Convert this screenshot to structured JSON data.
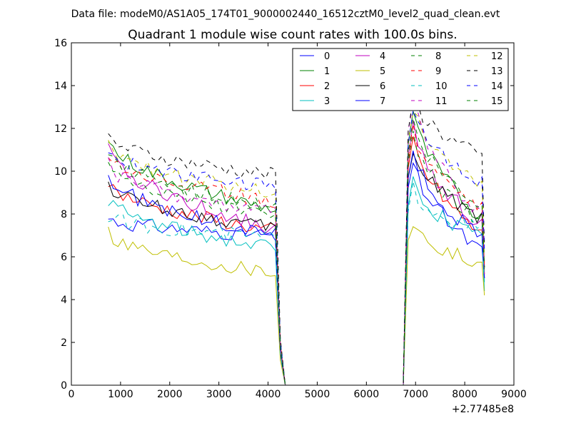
{
  "suptitle": "Data file: modeM0/AS1A05_174T01_9000002440_16512cztM0_level2_quad_clean.evt",
  "chart_data": {
    "type": "line",
    "title": "Quadrant 1 module wise count rates with 100.0s bins.",
    "xlabel": "",
    "ylabel": "",
    "x_offset_label": "+2.77485e8",
    "xlim": [
      0,
      9000
    ],
    "ylim": [
      0,
      16
    ],
    "x_ticks": [
      0,
      1000,
      2000,
      3000,
      4000,
      5000,
      6000,
      7000,
      8000,
      9000
    ],
    "y_ticks": [
      0,
      2,
      4,
      6,
      8,
      10,
      12,
      14,
      16
    ],
    "grid": false,
    "legend_position": "top-right",
    "segments": {
      "seg1_start": 750,
      "seg1_step": 100,
      "seg1_end": 4150,
      "drop_x": 4250,
      "zero_from": 4350,
      "zero_to": 6750,
      "rise_x": 6850,
      "seg2_start": 6950,
      "seg2_end": 8350
    },
    "series": [
      {
        "name": "0",
        "color": "#0000ff",
        "dash": false,
        "seg1": [
          7.8,
          7.0
        ],
        "seg2": [
          10.5,
          6.2
        ],
        "end": 5.0
      },
      {
        "name": "1",
        "color": "#008000",
        "dash": false,
        "seg1": [
          11.5,
          8.2
        ],
        "seg2": [
          12.8,
          7.8
        ],
        "end": 5.5
      },
      {
        "name": "2",
        "color": "#ff0000",
        "dash": false,
        "seg1": [
          9.5,
          7.2
        ],
        "seg2": [
          11.5,
          7.0
        ],
        "end": 5.2
      },
      {
        "name": "3",
        "color": "#00bfbf",
        "dash": false,
        "seg1": [
          8.7,
          6.4
        ],
        "seg2": [
          9.5,
          6.8
        ],
        "end": 4.4
      },
      {
        "name": "4",
        "color": "#bf00bf",
        "dash": false,
        "seg1": [
          11.0,
          7.3
        ],
        "seg2": [
          12.0,
          7.5
        ],
        "end": 5.0
      },
      {
        "name": "5",
        "color": "#bfbf00",
        "dash": false,
        "seg1": [
          7.2,
          5.3
        ],
        "seg2": [
          7.7,
          5.5
        ],
        "end": 4.2
      },
      {
        "name": "6",
        "color": "#000000",
        "dash": false,
        "seg1": [
          9.4,
          7.3
        ],
        "seg2": [
          11.0,
          7.8
        ],
        "end": 5.5
      },
      {
        "name": "7",
        "color": "#0000ff",
        "dash": false,
        "seg1": [
          9.8,
          7.0
        ],
        "seg2": [
          11.0,
          6.8
        ],
        "end": 5.0
      },
      {
        "name": "8",
        "color": "#008000",
        "dash": true,
        "seg1": [
          10.5,
          7.9
        ],
        "seg2": [
          11.8,
          7.4
        ],
        "end": 5.3
      },
      {
        "name": "9",
        "color": "#ff0000",
        "dash": true,
        "seg1": [
          10.8,
          8.6
        ],
        "seg2": [
          12.0,
          8.3
        ],
        "end": 5.5
      },
      {
        "name": "10",
        "color": "#00bfbf",
        "dash": true,
        "seg1": [
          7.9,
          6.9
        ],
        "seg2": [
          9.2,
          7.2
        ],
        "end": 4.8
      },
      {
        "name": "11",
        "color": "#bf00bf",
        "dash": true,
        "seg1": [
          10.3,
          8.0
        ],
        "seg2": [
          13.5,
          7.8
        ],
        "end": 5.2
      },
      {
        "name": "12",
        "color": "#bfbf00",
        "dash": true,
        "seg1": [
          11.2,
          9.0
        ],
        "seg2": [
          13.0,
          9.3
        ],
        "end": 6.0
      },
      {
        "name": "13",
        "color": "#000000",
        "dash": true,
        "seg1": [
          11.6,
          9.8
        ],
        "seg2": [
          13.5,
          10.6
        ],
        "end": 6.5
      },
      {
        "name": "14",
        "color": "#0000ff",
        "dash": true,
        "seg1": [
          10.8,
          9.3
        ],
        "seg2": [
          12.8,
          9.5
        ],
        "end": 6.2
      },
      {
        "name": "15",
        "color": "#008000",
        "dash": true,
        "seg1": [
          10.8,
          8.3
        ],
        "seg2": [
          12.3,
          8.2
        ],
        "end": 5.5
      }
    ]
  }
}
